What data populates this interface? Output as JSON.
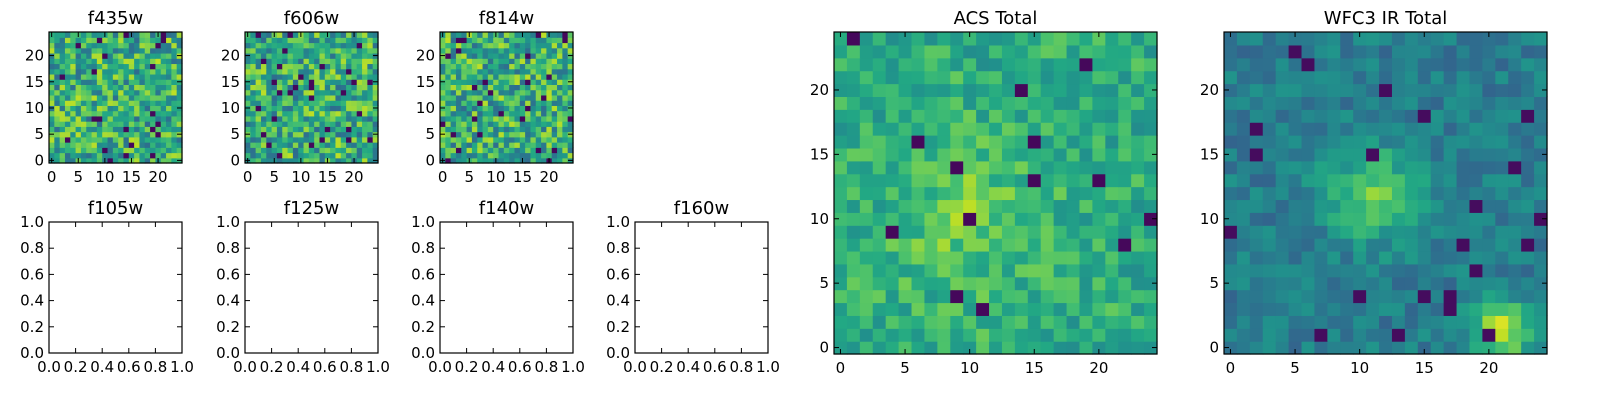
{
  "chart_data": {
    "type": "heatmap",
    "colormap": "viridis",
    "grid": false,
    "pixel_grid": {
      "rows": 25,
      "cols": 25
    },
    "panels": [
      {
        "id": "f435w",
        "title": "f435w",
        "kind": "image",
        "noise": "high",
        "xticks": [
          0,
          5,
          10,
          15,
          20
        ],
        "yticks": [
          0,
          5,
          10,
          15,
          20
        ],
        "xlim": [
          -0.5,
          24.5
        ],
        "ylim": [
          -0.5,
          24.5
        ],
        "seed": 11
      },
      {
        "id": "f606w",
        "title": "f606w",
        "kind": "image",
        "noise": "high",
        "xticks": [
          0,
          5,
          10,
          15,
          20
        ],
        "yticks": [
          0,
          5,
          10,
          15,
          20
        ],
        "xlim": [
          -0.5,
          24.5
        ],
        "ylim": [
          -0.5,
          24.5
        ],
        "seed": 23
      },
      {
        "id": "f814w",
        "title": "f814w",
        "kind": "image",
        "noise": "high",
        "xticks": [
          0,
          5,
          10,
          15,
          20
        ],
        "yticks": [
          0,
          5,
          10,
          15,
          20
        ],
        "xlim": [
          -0.5,
          24.5
        ],
        "ylim": [
          -0.5,
          24.5
        ],
        "seed": 37
      },
      {
        "id": "f105w",
        "title": "f105w",
        "kind": "empty",
        "xticks": [
          "0.0",
          "0.2",
          "0.4",
          "0.6",
          "0.8",
          "1.0"
        ],
        "yticks": [
          "0.0",
          "0.2",
          "0.4",
          "0.6",
          "0.8",
          "1.0"
        ],
        "xlim": [
          0,
          1
        ],
        "ylim": [
          0,
          1
        ]
      },
      {
        "id": "f125w",
        "title": "f125w",
        "kind": "empty",
        "xticks": [
          "0.0",
          "0.2",
          "0.4",
          "0.6",
          "0.8",
          "1.0"
        ],
        "yticks": [
          "0.0",
          "0.2",
          "0.4",
          "0.6",
          "0.8",
          "1.0"
        ],
        "xlim": [
          0,
          1
        ],
        "ylim": [
          0,
          1
        ]
      },
      {
        "id": "f140w",
        "title": "f140w",
        "kind": "empty",
        "xticks": [
          "0.0",
          "0.2",
          "0.4",
          "0.6",
          "0.8",
          "1.0"
        ],
        "yticks": [
          "0.0",
          "0.2",
          "0.4",
          "0.6",
          "0.8",
          "1.0"
        ],
        "xlim": [
          0,
          1
        ],
        "ylim": [
          0,
          1
        ]
      },
      {
        "id": "f160w",
        "title": "f160w",
        "kind": "empty",
        "xticks": [
          "0.0",
          "0.2",
          "0.4",
          "0.6",
          "0.8",
          "1.0"
        ],
        "yticks": [
          "0.0",
          "0.2",
          "0.4",
          "0.6",
          "0.8",
          "1.0"
        ],
        "xlim": [
          0,
          1
        ],
        "ylim": [
          0,
          1
        ]
      },
      {
        "id": "acs-total",
        "title": "ACS Total",
        "kind": "image",
        "noise": "medium",
        "bias": 0.62,
        "xticks": [
          0,
          5,
          10,
          15,
          20
        ],
        "yticks": [
          0,
          5,
          10,
          15,
          20
        ],
        "xlim": [
          -0.5,
          24.5
        ],
        "ylim": [
          -0.5,
          24.5
        ],
        "seed": 53
      },
      {
        "id": "wfc3-ir-total",
        "title": "WFC3 IR Total",
        "kind": "image",
        "noise": "low",
        "bias": 0.42,
        "xticks": [
          0,
          5,
          10,
          15,
          20
        ],
        "yticks": [
          0,
          5,
          10,
          15,
          20
        ],
        "xlim": [
          -0.5,
          24.5
        ],
        "ylim": [
          -0.5,
          24.5
        ],
        "seed": 71
      }
    ]
  }
}
